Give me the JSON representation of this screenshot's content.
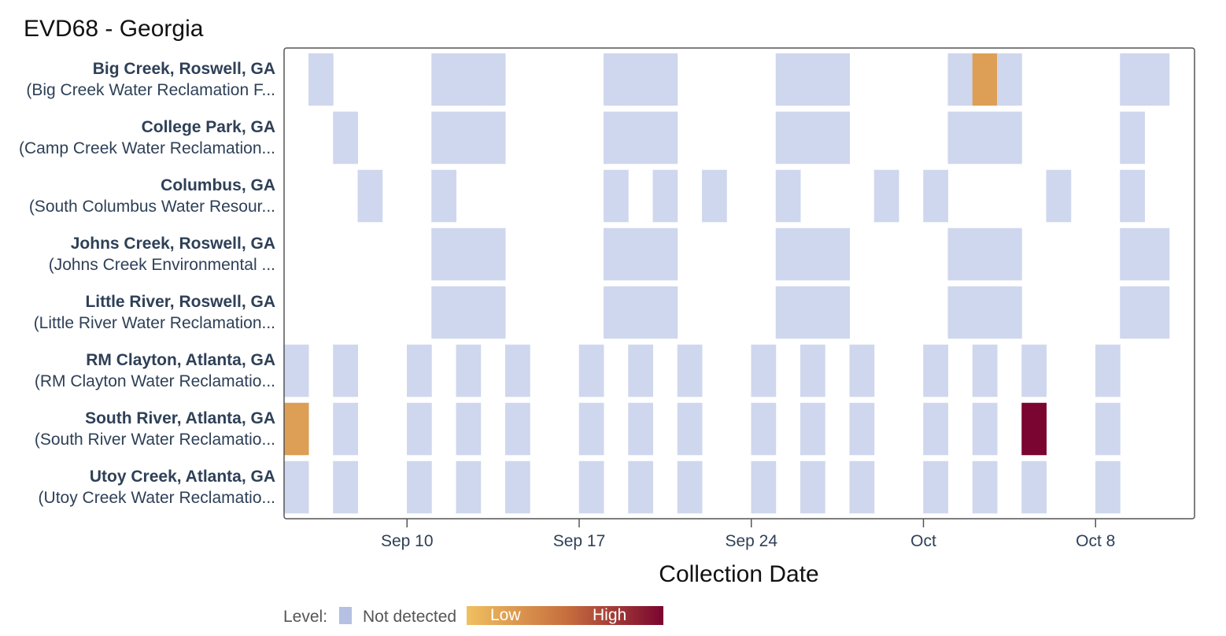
{
  "chart_data": {
    "type": "heatmap",
    "title": "EVD68 - Georgia",
    "xlabel": "Collection Date",
    "x_range": [
      "Sep 5",
      "Oct 11"
    ],
    "ticks": [
      {
        "label": "Sep 10",
        "day": 10
      },
      {
        "label": "Sep 17",
        "day": 17
      },
      {
        "label": "Sep 24",
        "day": 24
      },
      {
        "label": "Oct",
        "day": 31
      },
      {
        "label": "Oct 8",
        "day": 38
      }
    ],
    "sites": [
      {
        "name": "Big Creek, Roswell, GA",
        "facility": "(Big Creek Water Reclamation F...",
        "samples": [
          [
            6,
            "nd"
          ],
          [
            11,
            "nd"
          ],
          [
            12,
            "nd"
          ],
          [
            13,
            "nd"
          ],
          [
            18,
            "nd"
          ],
          [
            19,
            "nd"
          ],
          [
            20,
            "nd"
          ],
          [
            25,
            "nd"
          ],
          [
            26,
            "nd"
          ],
          [
            27,
            "nd"
          ],
          [
            32,
            "nd"
          ],
          [
            33,
            "low"
          ],
          [
            34,
            "nd"
          ],
          [
            39,
            "nd"
          ],
          [
            40,
            "nd"
          ]
        ]
      },
      {
        "name": "College Park, GA",
        "facility": "(Camp Creek Water Reclamation...",
        "samples": [
          [
            7,
            "nd"
          ],
          [
            11,
            "nd"
          ],
          [
            12,
            "nd"
          ],
          [
            13,
            "nd"
          ],
          [
            18,
            "nd"
          ],
          [
            19,
            "nd"
          ],
          [
            20,
            "nd"
          ],
          [
            25,
            "nd"
          ],
          [
            26,
            "nd"
          ],
          [
            27,
            "nd"
          ],
          [
            32,
            "nd"
          ],
          [
            33,
            "nd"
          ],
          [
            34,
            "nd"
          ],
          [
            39,
            "nd"
          ]
        ]
      },
      {
        "name": "Columbus, GA",
        "facility": "(South Columbus Water Resour...",
        "samples": [
          [
            8,
            "nd"
          ],
          [
            11,
            "nd"
          ],
          [
            18,
            "nd"
          ],
          [
            20,
            "nd"
          ],
          [
            22,
            "nd"
          ],
          [
            25,
            "nd"
          ],
          [
            29,
            "nd"
          ],
          [
            31,
            "nd"
          ],
          [
            36,
            "nd"
          ],
          [
            39,
            "nd"
          ]
        ]
      },
      {
        "name": "Johns Creek, Roswell, GA",
        "facility": "(Johns Creek Environmental ...",
        "samples": [
          [
            11,
            "nd"
          ],
          [
            12,
            "nd"
          ],
          [
            13,
            "nd"
          ],
          [
            18,
            "nd"
          ],
          [
            19,
            "nd"
          ],
          [
            20,
            "nd"
          ],
          [
            25,
            "nd"
          ],
          [
            26,
            "nd"
          ],
          [
            27,
            "nd"
          ],
          [
            32,
            "nd"
          ],
          [
            33,
            "nd"
          ],
          [
            34,
            "nd"
          ],
          [
            39,
            "nd"
          ],
          [
            40,
            "nd"
          ]
        ]
      },
      {
        "name": "Little River, Roswell, GA",
        "facility": "(Little River Water Reclamation...",
        "samples": [
          [
            11,
            "nd"
          ],
          [
            12,
            "nd"
          ],
          [
            13,
            "nd"
          ],
          [
            18,
            "nd"
          ],
          [
            19,
            "nd"
          ],
          [
            20,
            "nd"
          ],
          [
            25,
            "nd"
          ],
          [
            26,
            "nd"
          ],
          [
            27,
            "nd"
          ],
          [
            32,
            "nd"
          ],
          [
            33,
            "nd"
          ],
          [
            34,
            "nd"
          ],
          [
            39,
            "nd"
          ],
          [
            40,
            "nd"
          ]
        ]
      },
      {
        "name": "RM Clayton, Atlanta, GA",
        "facility": "(RM Clayton Water Reclamatio...",
        "samples": [
          [
            5,
            "nd"
          ],
          [
            7,
            "nd"
          ],
          [
            10,
            "nd"
          ],
          [
            12,
            "nd"
          ],
          [
            14,
            "nd"
          ],
          [
            17,
            "nd"
          ],
          [
            19,
            "nd"
          ],
          [
            21,
            "nd"
          ],
          [
            24,
            "nd"
          ],
          [
            26,
            "nd"
          ],
          [
            28,
            "nd"
          ],
          [
            31,
            "nd"
          ],
          [
            33,
            "nd"
          ],
          [
            35,
            "nd"
          ],
          [
            38,
            "nd"
          ]
        ]
      },
      {
        "name": "South River, Atlanta, GA",
        "facility": "(South River Water Reclamatio...",
        "samples": [
          [
            5,
            "low"
          ],
          [
            7,
            "nd"
          ],
          [
            10,
            "nd"
          ],
          [
            12,
            "nd"
          ],
          [
            14,
            "nd"
          ],
          [
            17,
            "nd"
          ],
          [
            19,
            "nd"
          ],
          [
            21,
            "nd"
          ],
          [
            24,
            "nd"
          ],
          [
            26,
            "nd"
          ],
          [
            28,
            "nd"
          ],
          [
            31,
            "nd"
          ],
          [
            33,
            "nd"
          ],
          [
            35,
            "high"
          ],
          [
            38,
            "nd"
          ]
        ]
      },
      {
        "name": "Utoy Creek, Atlanta, GA",
        "facility": "(Utoy Creek Water Reclamatio...",
        "samples": [
          [
            5,
            "nd"
          ],
          [
            7,
            "nd"
          ],
          [
            10,
            "nd"
          ],
          [
            12,
            "nd"
          ],
          [
            14,
            "nd"
          ],
          [
            17,
            "nd"
          ],
          [
            19,
            "nd"
          ],
          [
            21,
            "nd"
          ],
          [
            24,
            "nd"
          ],
          [
            26,
            "nd"
          ],
          [
            28,
            "nd"
          ],
          [
            31,
            "nd"
          ],
          [
            33,
            "nd"
          ],
          [
            35,
            "nd"
          ],
          [
            38,
            "nd"
          ]
        ]
      }
    ],
    "legend": {
      "title": "Level:",
      "not_detected": "Not detected",
      "low": "Low",
      "high": "High"
    }
  },
  "colors": {
    "nd": "#cfd7ee",
    "low": "#dd9e55",
    "high": "#7a0530",
    "nd_swatch": "#b5c0e3",
    "grad_start": "#f0c060",
    "grad_mid": "#c8703e",
    "grad_end": "#7a0530",
    "frame": "#555555"
  }
}
